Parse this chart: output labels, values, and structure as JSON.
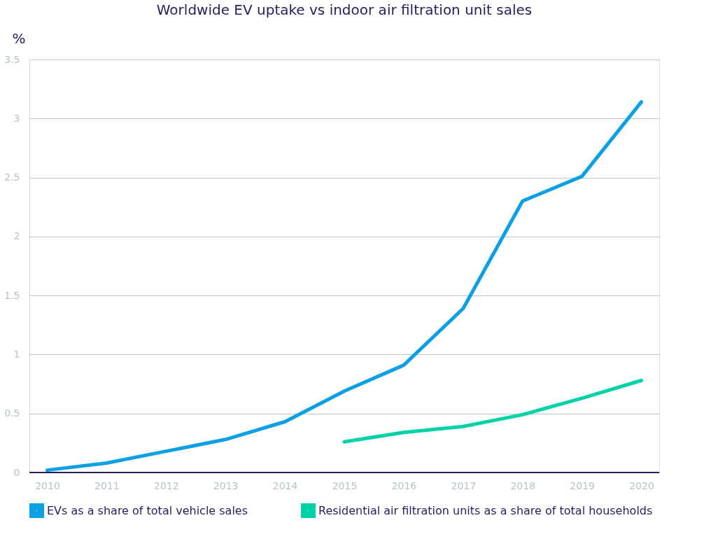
{
  "chart_data": {
    "type": "line",
    "title": "Worldwide EV uptake vs indoor air filtration unit sales",
    "ylabel": "%",
    "categories": [
      "2010",
      "2011",
      "2012",
      "2013",
      "2014",
      "2015",
      "2016",
      "2017",
      "2018",
      "2019",
      "2020"
    ],
    "series": [
      {
        "name": "EVs as a share of total vehicle sales",
        "color": "#0ba0e3",
        "values": [
          0.02,
          0.08,
          0.18,
          0.28,
          0.43,
          0.69,
          0.91,
          1.39,
          2.3,
          2.51,
          3.14
        ]
      },
      {
        "name": "Residential air filtration units as a share of total households",
        "color": "#00d1a7",
        "values": [
          null,
          null,
          null,
          null,
          null,
          0.26,
          0.34,
          0.39,
          0.49,
          0.63,
          0.78
        ]
      }
    ],
    "ylim": [
      0,
      3.5
    ],
    "yticks": [
      0,
      0.5,
      1,
      1.5,
      2,
      2.5,
      3,
      3.5
    ],
    "grid": "y",
    "legend": "bottom",
    "marker": "none",
    "line_style": "solid"
  }
}
